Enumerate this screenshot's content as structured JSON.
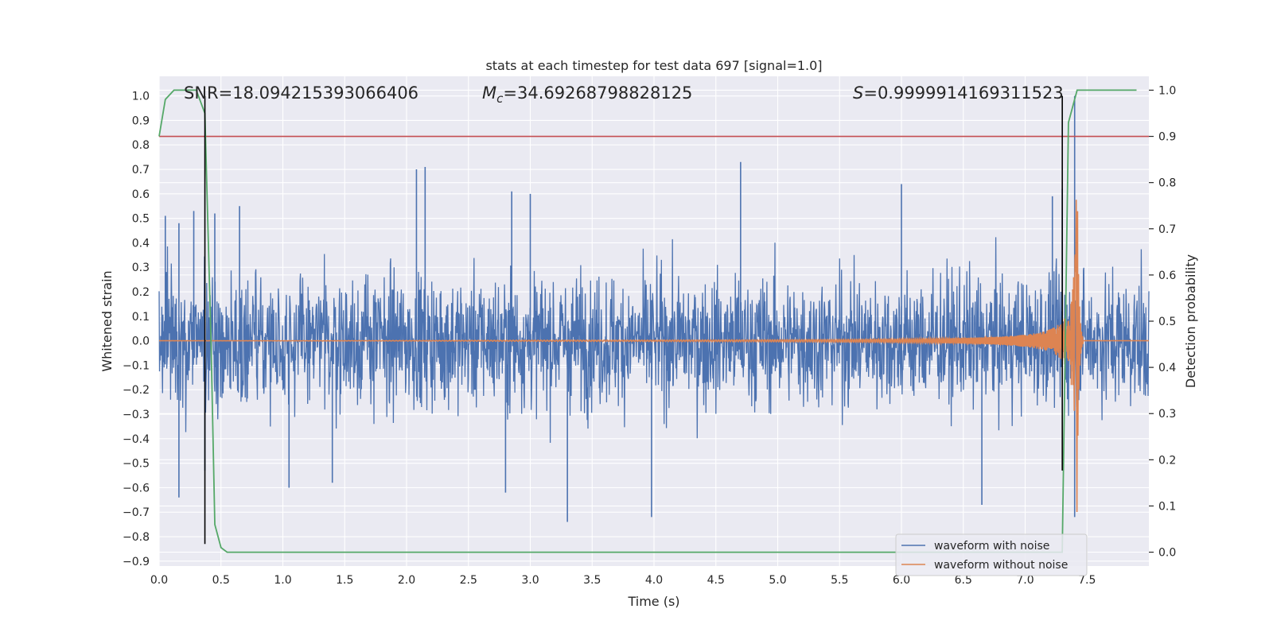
{
  "chart_data": {
    "type": "line",
    "title": "stats at each timestep for test data 697 [signal=1.0]",
    "xlabel": "Time (s)",
    "ylabel": "Whitened strain",
    "y2label": "Detection probability",
    "xlim": [
      0.0,
      8.0
    ],
    "ylim": [
      -0.92,
      1.08
    ],
    "y2lim": [
      -0.03,
      1.03
    ],
    "x_ticks": [
      0.0,
      0.5,
      1.0,
      1.5,
      2.0,
      2.5,
      3.0,
      3.5,
      4.0,
      4.5,
      5.0,
      5.5,
      6.0,
      6.5,
      7.0,
      7.5
    ],
    "y_ticks": [
      -0.9,
      -0.8,
      -0.7,
      -0.6,
      -0.5,
      -0.4,
      -0.3,
      -0.2,
      -0.1,
      0.0,
      0.1,
      0.2,
      0.3,
      0.4,
      0.5,
      0.6,
      0.7,
      0.8,
      0.9,
      1.0
    ],
    "y2_ticks": [
      0.0,
      0.1,
      0.2,
      0.3,
      0.4,
      0.5,
      0.6,
      0.7,
      0.8,
      0.9,
      1.0
    ],
    "grid": true,
    "legend_position": "lower-right",
    "annotations": {
      "snr": "SNR=18.094215393066406",
      "mc_symbol": "M",
      "mc_sub": "c",
      "mc_value": "=34.69268798828125",
      "s_symbol": "S",
      "s_value": "=0.9999914169311523"
    },
    "threshold": {
      "axis": "y2",
      "value": 0.9,
      "color": "#c44e52"
    },
    "vertical_markers": [
      {
        "x": 0.37,
        "ymin": -0.83,
        "ymax": 1.0
      },
      {
        "x": 7.3,
        "ymin": -0.53,
        "ymax": 1.0
      }
    ],
    "series": [
      {
        "name": "waveform with noise",
        "color": "#4c72b0",
        "axis": "y",
        "noise_envelope": {
          "typical_max": 0.3,
          "peak_max": 0.72,
          "typical_min": -0.3,
          "peak_min": -0.74
        },
        "peaks": [
          {
            "x": 0.05,
            "y": 0.51
          },
          {
            "x": 0.16,
            "y": 0.48
          },
          {
            "x": 0.28,
            "y": 0.53
          },
          {
            "x": 0.45,
            "y": 0.52
          },
          {
            "x": 0.65,
            "y": 0.55
          },
          {
            "x": 2.08,
            "y": 0.7
          },
          {
            "x": 2.15,
            "y": 0.71
          },
          {
            "x": 2.85,
            "y": 0.61
          },
          {
            "x": 3.0,
            "y": 0.6
          },
          {
            "x": 4.7,
            "y": 0.73
          },
          {
            "x": 6.0,
            "y": 0.64
          },
          {
            "x": 7.22,
            "y": 0.59
          },
          {
            "x": 7.3,
            "y": 0.62
          },
          {
            "x": 7.4,
            "y": 1.0
          },
          {
            "x": 0.16,
            "y": -0.64
          },
          {
            "x": 0.37,
            "y": -0.53
          },
          {
            "x": 1.05,
            "y": -0.6
          },
          {
            "x": 1.4,
            "y": -0.58
          },
          {
            "x": 2.8,
            "y": -0.62
          },
          {
            "x": 3.3,
            "y": -0.74
          },
          {
            "x": 3.98,
            "y": -0.72
          },
          {
            "x": 6.65,
            "y": -0.67
          },
          {
            "x": 7.4,
            "y": -0.72
          }
        ]
      },
      {
        "name": "waveform without noise",
        "color": "#dd8452",
        "axis": "y",
        "chirp": {
          "start_x": 0.0,
          "merger_x": 7.42,
          "max_amplitude": 0.8,
          "ringdown_end_x": 7.47
        }
      },
      {
        "name": "",
        "color": "#55a868",
        "axis": "y2",
        "x": [
          0.0,
          0.05,
          0.12,
          0.2,
          0.3,
          0.37,
          0.42,
          0.45,
          0.5,
          0.55,
          1.0,
          3.0,
          5.0,
          7.0,
          7.3,
          7.35,
          7.42,
          7.5,
          7.9
        ],
        "values": [
          0.9,
          0.98,
          1.0,
          1.0,
          1.0,
          0.95,
          0.45,
          0.06,
          0.01,
          0.0,
          0.0,
          0.0,
          0.0,
          0.0,
          0.0,
          0.93,
          1.0,
          1.0,
          1.0
        ]
      }
    ],
    "legend_entries": [
      "waveform with noise",
      "waveform without noise"
    ]
  }
}
